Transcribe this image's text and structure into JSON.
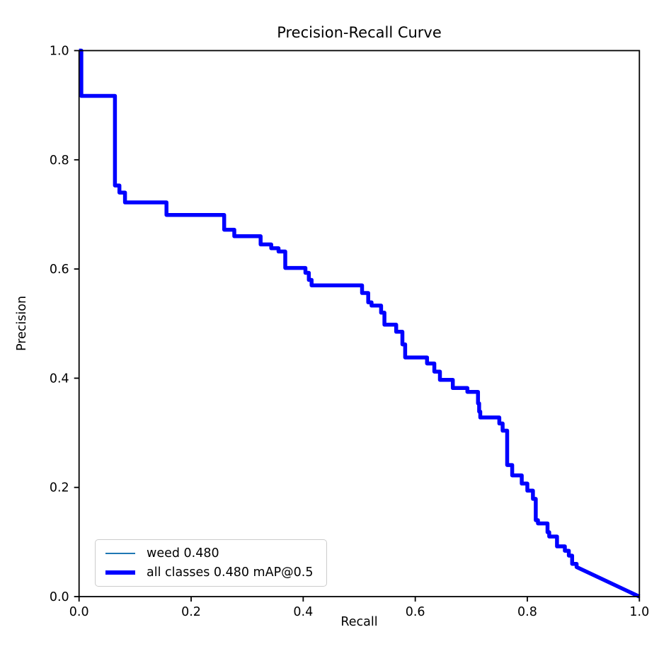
{
  "figure": {
    "title": "Precision-Recall Curve",
    "xlabel": "Recall",
    "ylabel": "Precision"
  },
  "legend": {
    "position": "lower-left",
    "entries": [
      {
        "label": "weed 0.480",
        "color": "#1f77b4",
        "thickness": "thin"
      },
      {
        "label": "all classes 0.480 mAP@0.5",
        "color": "#0000ff",
        "thickness": "thick"
      }
    ]
  },
  "chart_data": {
    "type": "line",
    "title": "Precision-Recall Curve",
    "xlabel": "Recall",
    "ylabel": "Precision",
    "xlim": [
      0.0,
      1.0
    ],
    "ylim": [
      0.0,
      1.0
    ],
    "x_ticks": [
      "0.0",
      "0.2",
      "0.4",
      "0.6",
      "0.8",
      "1.0"
    ],
    "y_ticks": [
      "0.0",
      "0.2",
      "0.4",
      "0.6",
      "0.8",
      "1.0"
    ],
    "grid": false,
    "legend_position": "lower left",
    "series": [
      {
        "name": "weed 0.480",
        "class_name": "weed",
        "ap50": 0.48,
        "color": "#1f77b4",
        "linewidth": 1.5
      },
      {
        "name": "all classes 0.480 mAP@0.5",
        "class_name": "all classes",
        "map50": 0.48,
        "color": "#0000ff",
        "linewidth": 5.5
      }
    ],
    "points_recall_precision": [
      [
        0.0,
        1.0
      ],
      [
        0.004,
        1.0
      ],
      [
        0.004,
        0.917
      ],
      [
        0.064,
        0.917
      ],
      [
        0.064,
        0.753
      ],
      [
        0.072,
        0.753
      ],
      [
        0.072,
        0.74
      ],
      [
        0.082,
        0.74
      ],
      [
        0.082,
        0.722
      ],
      [
        0.156,
        0.722
      ],
      [
        0.156,
        0.699
      ],
      [
        0.259,
        0.699
      ],
      [
        0.259,
        0.672
      ],
      [
        0.277,
        0.672
      ],
      [
        0.277,
        0.66
      ],
      [
        0.324,
        0.66
      ],
      [
        0.324,
        0.645
      ],
      [
        0.343,
        0.645
      ],
      [
        0.343,
        0.638
      ],
      [
        0.356,
        0.638
      ],
      [
        0.356,
        0.632
      ],
      [
        0.368,
        0.632
      ],
      [
        0.368,
        0.602
      ],
      [
        0.404,
        0.602
      ],
      [
        0.404,
        0.593
      ],
      [
        0.41,
        0.593
      ],
      [
        0.41,
        0.58
      ],
      [
        0.415,
        0.58
      ],
      [
        0.415,
        0.57
      ],
      [
        0.505,
        0.57
      ],
      [
        0.505,
        0.556
      ],
      [
        0.516,
        0.556
      ],
      [
        0.516,
        0.539
      ],
      [
        0.522,
        0.539
      ],
      [
        0.522,
        0.533
      ],
      [
        0.539,
        0.533
      ],
      [
        0.539,
        0.52
      ],
      [
        0.545,
        0.52
      ],
      [
        0.545,
        0.498
      ],
      [
        0.566,
        0.498
      ],
      [
        0.566,
        0.485
      ],
      [
        0.577,
        0.485
      ],
      [
        0.577,
        0.462
      ],
      [
        0.582,
        0.462
      ],
      [
        0.582,
        0.438
      ],
      [
        0.587,
        0.438
      ],
      [
        0.621,
        0.438
      ],
      [
        0.621,
        0.427
      ],
      [
        0.634,
        0.427
      ],
      [
        0.634,
        0.412
      ],
      [
        0.644,
        0.412
      ],
      [
        0.644,
        0.397
      ],
      [
        0.667,
        0.397
      ],
      [
        0.667,
        0.382
      ],
      [
        0.693,
        0.382
      ],
      [
        0.693,
        0.375
      ],
      [
        0.712,
        0.375
      ],
      [
        0.712,
        0.354
      ],
      [
        0.714,
        0.354
      ],
      [
        0.714,
        0.339
      ],
      [
        0.716,
        0.339
      ],
      [
        0.716,
        0.328
      ],
      [
        0.75,
        0.328
      ],
      [
        0.75,
        0.317
      ],
      [
        0.756,
        0.317
      ],
      [
        0.756,
        0.304
      ],
      [
        0.764,
        0.304
      ],
      [
        0.764,
        0.241
      ],
      [
        0.773,
        0.241
      ],
      [
        0.773,
        0.222
      ],
      [
        0.79,
        0.222
      ],
      [
        0.79,
        0.207
      ],
      [
        0.8,
        0.207
      ],
      [
        0.8,
        0.194
      ],
      [
        0.81,
        0.194
      ],
      [
        0.81,
        0.179
      ],
      [
        0.815,
        0.179
      ],
      [
        0.815,
        0.14
      ],
      [
        0.819,
        0.14
      ],
      [
        0.819,
        0.134
      ],
      [
        0.836,
        0.134
      ],
      [
        0.836,
        0.118
      ],
      [
        0.839,
        0.118
      ],
      [
        0.839,
        0.11
      ],
      [
        0.853,
        0.11
      ],
      [
        0.853,
        0.092
      ],
      [
        0.867,
        0.092
      ],
      [
        0.867,
        0.084
      ],
      [
        0.874,
        0.084
      ],
      [
        0.874,
        0.075
      ],
      [
        0.88,
        0.075
      ],
      [
        0.88,
        0.06
      ],
      [
        0.888,
        0.06
      ],
      [
        0.888,
        0.054
      ],
      [
        1.0,
        0.0
      ]
    ]
  }
}
